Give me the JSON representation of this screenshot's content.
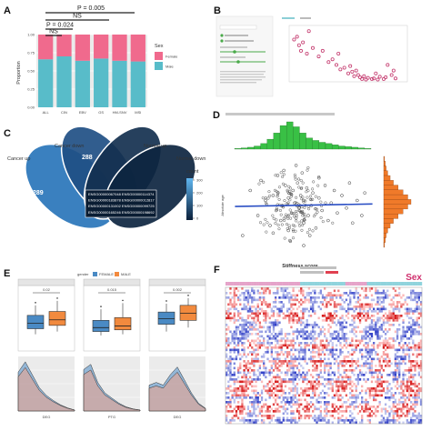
{
  "panels": {
    "a": {
      "label": "A"
    },
    "b": {
      "label": "B"
    },
    "c": {
      "label": "C"
    },
    "d": {
      "label": "D"
    },
    "e": {
      "label": "E"
    },
    "f": {
      "label": "F"
    }
  },
  "chart_data": [
    {
      "type": "bar",
      "panel": "A",
      "stacked": true,
      "ylabel": "Proportion",
      "yticks": [
        "0.00",
        "0.25",
        "0.50",
        "0.75",
        "1.00"
      ],
      "ylim": [
        0,
        1
      ],
      "categories": [
        "ALL",
        "CIN",
        "EBV",
        "GS",
        "HM-SNV",
        "MSI"
      ],
      "series": [
        {
          "name": "Male",
          "color": "#58bcc9",
          "values": [
            0.66,
            0.7,
            0.64,
            0.67,
            0.64,
            0.63
          ]
        },
        {
          "name": "Female",
          "color": "#f06a8d",
          "values": [
            0.34,
            0.3,
            0.36,
            0.33,
            0.36,
            0.37
          ]
        }
      ],
      "legend": {
        "title": "Sex",
        "placement": "right"
      },
      "annotations": [
        "P = 0.005",
        "NS",
        "P = 0.024",
        "NS"
      ]
    },
    {
      "type": "scatter",
      "panel": "B",
      "points": [
        [
          0.25,
          0.75
        ],
        [
          0.4,
          0.8
        ],
        [
          0.5,
          0.65
        ],
        [
          0.6,
          0.55
        ],
        [
          0.7,
          0.7
        ],
        [
          1.2,
          0.6
        ],
        [
          1.5,
          0.45
        ],
        [
          1.7,
          0.55
        ],
        [
          2.0,
          0.35
        ],
        [
          2.2,
          0.4
        ],
        [
          2.4,
          0.3
        ],
        [
          2.6,
          0.22
        ],
        [
          2.8,
          0.25
        ],
        [
          3.0,
          0.15
        ],
        [
          3.2,
          0.18
        ],
        [
          3.3,
          0.1
        ],
        [
          3.5,
          0.12
        ],
        [
          3.6,
          0.08
        ],
        [
          3.7,
          0.05
        ],
        [
          3.8,
          0.1
        ],
        [
          3.9,
          0.04
        ],
        [
          4.0,
          0.07
        ],
        [
          4.2,
          0.05
        ],
        [
          4.3,
          0.06
        ],
        [
          4.5,
          0.04
        ],
        [
          4.6,
          0.09
        ],
        [
          4.8,
          0.05
        ],
        [
          5.0,
          0.3
        ],
        [
          5.2,
          0.12
        ],
        [
          5.4,
          0.06
        ],
        [
          1.0,
          0.9
        ],
        [
          0.9,
          0.5
        ],
        [
          2.5,
          0.5
        ],
        [
          3.1,
          0.28
        ],
        [
          4.4,
          0.15
        ],
        [
          5.3,
          0.2
        ],
        [
          3.4,
          0.2
        ],
        [
          4.9,
          0.08
        ]
      ],
      "xlim": [
        0,
        6
      ],
      "ylim": [
        0,
        1
      ]
    },
    {
      "type": "venn",
      "panel": "C",
      "sets": [
        "Cancer up",
        "Cancer down",
        "Normal up",
        "Normal down"
      ],
      "region_values": [
        289,
        288
      ],
      "highlighted_genes": [
        "ENSG00000067048",
        "ENSG00000114374",
        "ENSG00000183878",
        "ENSG00000012817",
        "ENSG00000131002",
        "ENSG00000099725",
        "ENSG00000165246",
        "ENSG00000198692"
      ],
      "colorbar": {
        "title": "count",
        "ticks": [
          "300",
          "200",
          "100",
          "0"
        ]
      }
    },
    {
      "type": "scatter",
      "panel": "D",
      "xlabel": "Stiffness score",
      "ylabel": "Absolute age",
      "points": [
        [
          0.1,
          -0.6
        ],
        [
          0.15,
          0.3
        ],
        [
          0.2,
          -0.2
        ],
        [
          0.22,
          0.5
        ],
        [
          0.25,
          0.1
        ],
        [
          0.28,
          -0.4
        ],
        [
          0.3,
          0.2
        ],
        [
          0.32,
          -0.1
        ],
        [
          0.33,
          0.6
        ],
        [
          0.35,
          -0.3
        ],
        [
          0.36,
          0.0
        ],
        [
          0.38,
          0.4
        ],
        [
          0.4,
          -0.5
        ],
        [
          0.4,
          0.15
        ],
        [
          0.42,
          -0.15
        ],
        [
          0.43,
          0.3
        ],
        [
          0.44,
          0.05
        ],
        [
          0.45,
          -0.25
        ],
        [
          0.46,
          0.45
        ],
        [
          0.47,
          -0.05
        ],
        [
          0.48,
          0.2
        ],
        [
          0.5,
          -0.35
        ],
        [
          0.5,
          0.1
        ],
        [
          0.52,
          0.35
        ],
        [
          0.53,
          -0.2
        ],
        [
          0.55,
          0.0
        ],
        [
          0.56,
          0.25
        ],
        [
          0.58,
          -0.45
        ],
        [
          0.6,
          0.15
        ],
        [
          0.62,
          -0.1
        ],
        [
          0.64,
          0.4
        ],
        [
          0.66,
          -0.3
        ],
        [
          0.68,
          0.05
        ],
        [
          0.7,
          0.3
        ],
        [
          0.72,
          -0.15
        ],
        [
          0.75,
          0.2
        ],
        [
          0.78,
          -0.05
        ],
        [
          0.8,
          0.45
        ],
        [
          0.82,
          -0.35
        ],
        [
          0.85,
          0.1
        ],
        [
          0.88,
          -0.2
        ],
        [
          0.9,
          0.25
        ],
        [
          0.37,
          0.7
        ],
        [
          0.41,
          -0.7
        ],
        [
          0.49,
          0.65
        ],
        [
          0.54,
          -0.6
        ],
        [
          0.3,
          -0.55
        ],
        [
          0.6,
          0.55
        ],
        [
          0.45,
          0.8
        ],
        [
          0.5,
          -0.8
        ]
      ],
      "trend": [
        [
          0.05,
          -0.02
        ],
        [
          0.95,
          0.03
        ]
      ],
      "top_histogram": [
        1,
        2,
        3,
        5,
        9,
        16,
        26,
        38,
        44,
        36,
        26,
        18,
        14,
        11,
        9,
        7,
        5,
        4,
        3,
        2,
        1
      ],
      "right_histogram": [
        1,
        2,
        3,
        5,
        8,
        12,
        18,
        24,
        30,
        34,
        30,
        24,
        18,
        12,
        8,
        5,
        3,
        2,
        1
      ]
    },
    {
      "type": "box",
      "panel": "E",
      "legend": {
        "title": "gender",
        "entries": [
          "FEMALE",
          "MALE"
        ],
        "placement": "top"
      },
      "groups": [
        {
          "xlabel": "DEG",
          "annotation": "0.02",
          "female": [
            0.3,
            0.4,
            0.5,
            0.64,
            0.82
          ],
          "male": [
            0.35,
            0.46,
            0.56,
            0.71,
            0.9
          ]
        },
        {
          "xlabel": "PTG",
          "annotation": "0.015",
          "female": [
            0.28,
            0.35,
            0.42,
            0.55,
            0.75
          ],
          "male": [
            0.3,
            0.38,
            0.45,
            0.6,
            0.86
          ]
        },
        {
          "xlabel": "DEG",
          "annotation": "0.002",
          "female": [
            0.35,
            0.48,
            0.58,
            0.7,
            0.85
          ],
          "male": [
            0.42,
            0.55,
            0.68,
            0.82,
            0.95
          ]
        }
      ]
    },
    {
      "type": "heatmap",
      "panel": "F",
      "annotation_label": "Sex",
      "rows": 60,
      "cols": 100
    }
  ]
}
